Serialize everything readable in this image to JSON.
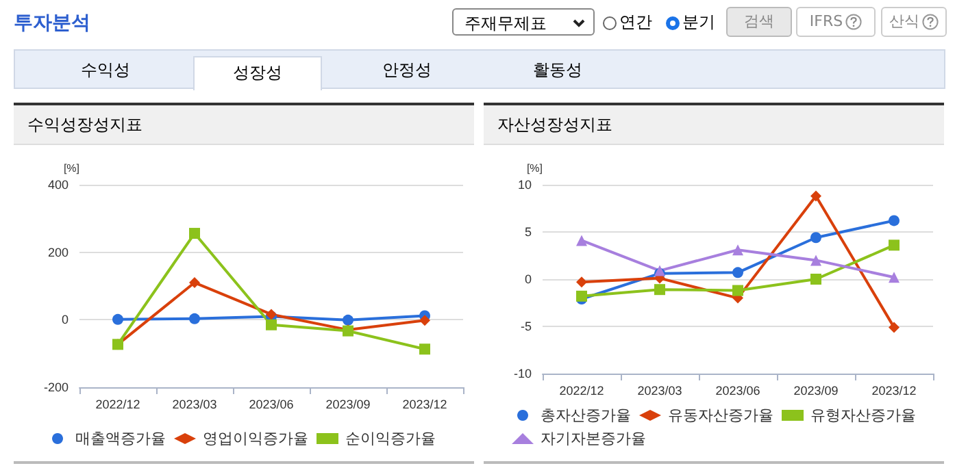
{
  "chart_data": [
    {
      "type": "other",
      "title": "투자분석",
      "annotations": [
        "주재무제표",
        "연간",
        "분기",
        "검색",
        "IFRS",
        "산식",
        "수익성",
        "성장성",
        "안정성",
        "활동성"
      ]
    },
    {
      "type": "line",
      "title": "수익성장성지표",
      "ylabel": "[%]",
      "categories": [
        "2022/12",
        "2023/03",
        "2023/06",
        "2023/09",
        "2023/12"
      ],
      "ylim": [
        -200,
        400
      ],
      "yticks": [
        -200,
        0,
        200,
        400
      ],
      "grid": "y",
      "legend": "bottom",
      "line_style": "solid",
      "series": [
        {
          "name": "매출액증가율",
          "color": "#2a6fdb",
          "marker": "circle",
          "values": [
            1,
            3,
            10,
            -1,
            12
          ]
        },
        {
          "name": "영업이익증가율",
          "color": "#d9400b",
          "marker": "diamond",
          "values": [
            -73,
            110,
            16,
            -30,
            -2
          ]
        },
        {
          "name": "순이익증가율",
          "color": "#8cc21c",
          "marker": "square",
          "values": [
            -73,
            256,
            -15,
            -33,
            -87
          ]
        }
      ]
    },
    {
      "type": "line",
      "title": "자산성장성지표",
      "ylabel": "[%]",
      "categories": [
        "2022/12",
        "2023/03",
        "2023/06",
        "2023/09",
        "2023/12"
      ],
      "ylim": [
        -10,
        10
      ],
      "yticks": [
        -10,
        -5,
        0,
        5,
        10
      ],
      "grid": "y",
      "legend": "bottom",
      "line_style": "solid",
      "series": [
        {
          "name": "총자산증가율",
          "color": "#2a6fdb",
          "marker": "circle",
          "values": [
            -2.1,
            0.6,
            0.7,
            4.4,
            6.2
          ]
        },
        {
          "name": "유동자산증가율",
          "color": "#d9400b",
          "marker": "diamond",
          "values": [
            -0.3,
            0.1,
            -2.0,
            8.8,
            -5.1
          ]
        },
        {
          "name": "유형자산증가율",
          "color": "#8cc21c",
          "marker": "square",
          "values": [
            -1.8,
            -1.1,
            -1.2,
            0,
            3.6
          ]
        },
        {
          "name": "자기자본증가율",
          "color": "#a77fde",
          "marker": "triangle",
          "values": [
            4.1,
            0.9,
            3.1,
            2.0,
            0.2
          ]
        }
      ]
    }
  ]
}
